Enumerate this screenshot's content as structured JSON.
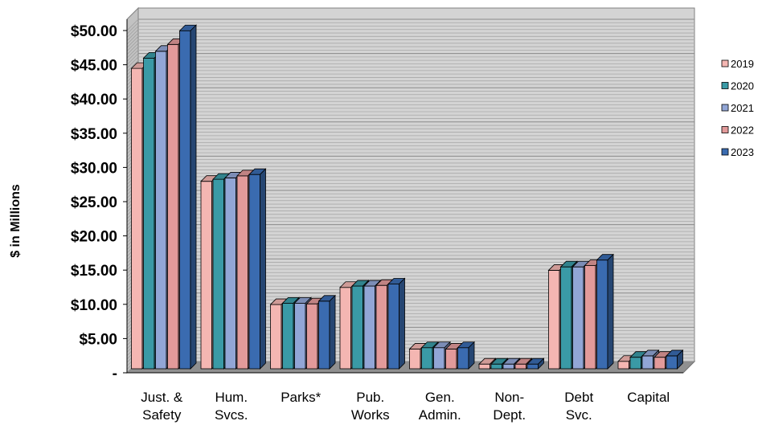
{
  "chart_data": {
    "type": "bar",
    "title": "",
    "xlabel": "",
    "ylabel": "$ in Millions",
    "ylim": [
      0,
      50
    ],
    "y_ticks": [
      "-",
      "$5.00",
      "$10.00",
      "$15.00",
      "$20.00",
      "$25.00",
      "$30.00",
      "$35.00",
      "$40.00",
      "$45.00",
      "$50.00"
    ],
    "categories": [
      [
        "Just. &",
        "Safety"
      ],
      [
        "Hum.",
        "Svcs."
      ],
      [
        "Parks*"
      ],
      [
        "Pub.",
        "Works"
      ],
      [
        "Gen.",
        "Admin."
      ],
      [
        "Non-",
        "Dept."
      ],
      [
        "Debt",
        "Svc."
      ],
      [
        "Capital"
      ]
    ],
    "series": [
      {
        "name": "2019",
        "color": "#F4B6B2",
        "values": [
          44.0,
          27.5,
          9.5,
          12.0,
          3.0,
          0.8,
          14.5,
          1.2
        ]
      },
      {
        "name": "2020",
        "color": "#3A9AA6",
        "values": [
          45.5,
          27.8,
          9.7,
          12.2,
          3.2,
          0.8,
          15.0,
          1.8
        ]
      },
      {
        "name": "2021",
        "color": "#92A6D6",
        "values": [
          46.5,
          28.0,
          9.7,
          12.2,
          3.2,
          0.8,
          15.0,
          2.0
        ]
      },
      {
        "name": "2022",
        "color": "#E29A9A",
        "values": [
          47.5,
          28.3,
          9.6,
          12.3,
          3.0,
          0.8,
          15.2,
          1.8
        ]
      },
      {
        "name": "2023",
        "color": "#3A6BB0",
        "values": [
          49.5,
          28.5,
          10.0,
          12.5,
          3.2,
          0.8,
          16.0,
          2.0
        ]
      }
    ],
    "grid": true,
    "legend_position": "right",
    "style": "3d-clustered-column"
  }
}
